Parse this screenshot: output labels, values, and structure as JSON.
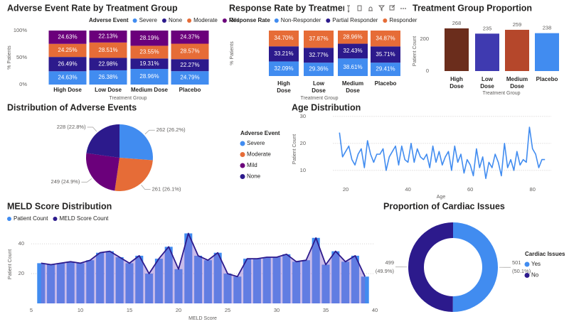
{
  "chart_data": [
    {
      "type": "stacked_bar",
      "title": "Adverse Event Rate by Treatment Group",
      "legend_title": "Adverse Event",
      "x_label": "Treatment Group",
      "y_label": "% Patients",
      "categories": [
        "High Dose",
        "Low Dose",
        "Medium Dose",
        "Placebo"
      ],
      "ylim": [
        0,
        100
      ],
      "yticks": [
        {
          "value": 0,
          "label": "0%"
        },
        {
          "value": 50,
          "label": "50%"
        },
        {
          "value": 100,
          "label": "100%"
        }
      ],
      "series": [
        {
          "name": "Severe",
          "color": "#418cf0",
          "values": [
            24.63,
            26.38,
            28.96,
            24.79
          ],
          "value_labels": [
            "24.63%",
            "26.38%",
            "28.96%",
            "24.79%"
          ]
        },
        {
          "name": "None",
          "color": "#2c1a8c",
          "values": [
            26.49,
            22.98,
            19.31,
            22.27
          ],
          "value_labels": [
            "26.49%",
            "22.98%",
            "19.31%",
            "22.27%"
          ]
        },
        {
          "name": "Moderate",
          "color": "#e66c37",
          "values": [
            24.25,
            28.51,
            23.55,
            28.57
          ],
          "value_labels": [
            "24.25%",
            "28.51%",
            "23.55%",
            "28.57%"
          ]
        },
        {
          "name": "Mild",
          "color": "#6b007b",
          "values": [
            24.63,
            22.13,
            28.19,
            24.37
          ],
          "value_labels": [
            "24.63%",
            "22.13%",
            "28.19%",
            "24.37%"
          ]
        }
      ]
    },
    {
      "type": "stacked_bar",
      "title": "Response Rate by Treatment Group",
      "legend_title": "Response Rate",
      "x_label": "Treatment Group",
      "y_label": "% Patients",
      "categories": [
        "High Dose",
        "Low Dose",
        "Medium Dose",
        "Placebo"
      ],
      "ylim": [
        0,
        100
      ],
      "series": [
        {
          "name": "Non-Responder",
          "color": "#418cf0",
          "values": [
            32.09,
            29.36,
            38.61,
            29.41
          ],
          "value_labels": [
            "32.09%",
            "29.36%",
            "38.61%",
            "29.41%"
          ]
        },
        {
          "name": "Partial Responder",
          "color": "#2c1a8c",
          "values": [
            33.21,
            32.77,
            32.43,
            35.71
          ],
          "value_labels": [
            "33.21%",
            "32.77%",
            "32.43%",
            "35.71%"
          ]
        },
        {
          "name": "Responder",
          "color": "#e66c37",
          "values": [
            34.7,
            37.87,
            28.96,
            34.87
          ],
          "value_labels": [
            "34.70%",
            "37.87%",
            "28.96%",
            "34.87%"
          ]
        }
      ]
    },
    {
      "type": "bar",
      "title": "Treatment Group Proportion",
      "x_label": "Treatment Group",
      "y_label": "Patient Count",
      "categories": [
        "High Dose",
        "Low Dose",
        "Medium Dose",
        "Placebo"
      ],
      "values": [
        268,
        235,
        259,
        238
      ],
      "colors": [
        "#6b2d1c",
        "#3f3ab0",
        "#b5472b",
        "#418cf0"
      ],
      "ylim": [
        0,
        290
      ],
      "yticks": [
        0,
        200
      ]
    },
    {
      "type": "pie",
      "title": "Distribution of Adverse Events",
      "legend_title": "Adverse Event",
      "categories": [
        "Severe",
        "Moderate",
        "Mild",
        "None"
      ],
      "values": [
        262,
        261,
        249,
        228
      ],
      "value_labels": [
        "262 (26.2%)",
        "261 (26.1%)",
        "249 (24.9%)",
        "228 (22.8%)"
      ],
      "colors": [
        "#418cf0",
        "#e66c37",
        "#6b007b",
        "#2c1a8c"
      ]
    },
    {
      "type": "line",
      "title": "Age Distribution",
      "x_label": "Age",
      "y_label": "Patient Count",
      "color": "#418cf0",
      "x": [
        18,
        19,
        20,
        21,
        22,
        23,
        24,
        25,
        26,
        27,
        28,
        29,
        30,
        31,
        32,
        33,
        34,
        35,
        36,
        37,
        38,
        39,
        40,
        41,
        42,
        43,
        44,
        45,
        46,
        47,
        48,
        49,
        50,
        51,
        52,
        53,
        54,
        55,
        56,
        57,
        58,
        59,
        60,
        61,
        62,
        63,
        64,
        65,
        66,
        67,
        68,
        69,
        70,
        71,
        72,
        73,
        74,
        75,
        76,
        77,
        78,
        79,
        80,
        81,
        82,
        83,
        84
      ],
      "values": [
        24,
        15,
        17,
        19,
        14,
        12,
        16,
        18,
        11,
        21,
        16,
        13,
        16,
        16,
        18,
        10,
        15,
        17,
        19,
        12,
        19,
        14,
        13,
        20,
        13,
        18,
        15,
        14,
        16,
        11,
        19,
        13,
        17,
        12,
        15,
        17,
        10,
        19,
        13,
        16,
        9,
        14,
        12,
        8,
        18,
        11,
        15,
        7,
        13,
        11,
        16,
        13,
        8,
        20,
        11,
        14,
        10,
        17,
        12,
        14,
        13,
        26,
        18,
        16,
        11,
        14,
        14
      ],
      "xlim": [
        16,
        86
      ],
      "xticks": [
        20,
        40,
        60,
        80
      ],
      "ylim": [
        6,
        31
      ],
      "yticks": [
        10,
        20,
        30
      ],
      "grid": true
    },
    {
      "type": "combo",
      "title": "MELD Score Distribution",
      "x_label": "MELD Score",
      "y_label": "Patient Count",
      "x": [
        6,
        7,
        8,
        9,
        10,
        11,
        12,
        13,
        14,
        15,
        16,
        17,
        18,
        19,
        20,
        21,
        22,
        23,
        24,
        25,
        26,
        27,
        28,
        29,
        30,
        31,
        32,
        33,
        34,
        35,
        36,
        37,
        38,
        39
      ],
      "series": [
        {
          "name": "Patient Count",
          "kind": "bar",
          "color": "#418cf0",
          "values": [
            27,
            26,
            27,
            28,
            27,
            29,
            34,
            35,
            31,
            27,
            32,
            20,
            30,
            38,
            23,
            47,
            32,
            29,
            34,
            20,
            18,
            30,
            30,
            31,
            31,
            33,
            28,
            29,
            44,
            26,
            35,
            28,
            32,
            18
          ]
        },
        {
          "name": "MELD Score Count",
          "kind": "area",
          "color": "#2c1a8c",
          "values": [
            27,
            26,
            27,
            28,
            27,
            29,
            34,
            35,
            31,
            27,
            32,
            20,
            30,
            38,
            23,
            47,
            32,
            29,
            34,
            20,
            18,
            30,
            30,
            31,
            31,
            33,
            28,
            29,
            44,
            26,
            35,
            28,
            32,
            18
          ]
        }
      ],
      "xlim": [
        5,
        40
      ],
      "xticks": [
        5,
        10,
        15,
        20,
        25,
        30,
        35,
        40
      ],
      "ylim": [
        0,
        52
      ],
      "yticks": [
        20,
        40
      ],
      "grid": true
    },
    {
      "type": "donut",
      "title": "Proportion of Cardiac Issues",
      "legend_title": "Cardiac Issues",
      "categories": [
        "Yes",
        "No"
      ],
      "values": [
        501,
        499
      ],
      "value_labels": [
        "501 (50.1%)",
        "499 (49.9%)"
      ],
      "colors": [
        "#418cf0",
        "#2c1a8c"
      ]
    }
  ]
}
